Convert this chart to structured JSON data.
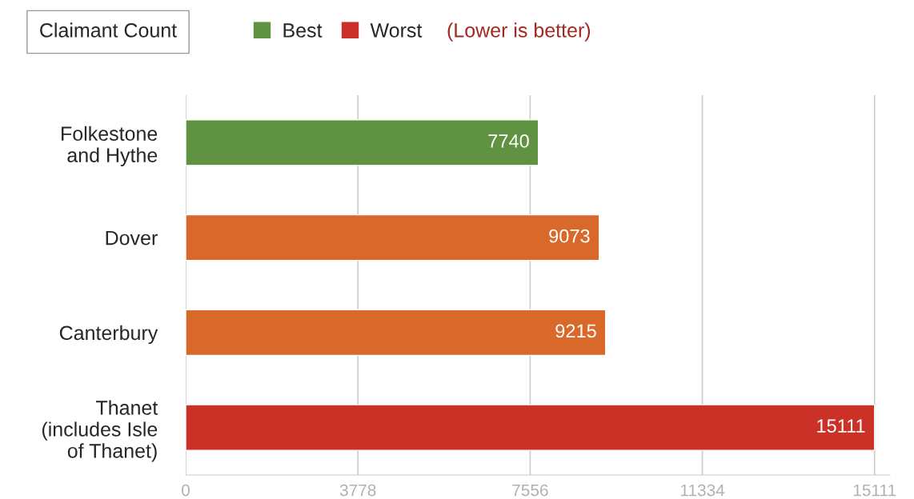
{
  "chart_data": {
    "type": "bar",
    "title": "Claimant Count",
    "orientation": "horizontal",
    "stacked": true,
    "categories": [
      "Folkestone\nand Hythe",
      "Dover",
      "Canterbury",
      "Thanet\n(includes Isle\nof Thanet)"
    ],
    "series": [
      {
        "name": "Best",
        "color": "#5f9341",
        "values": [
          7740,
          null,
          null,
          null
        ]
      },
      {
        "color": "#d9692a",
        "values": [
          null,
          9073,
          9215,
          null
        ]
      },
      {
        "name": "Worst",
        "color": "#cc3128",
        "values": [
          null,
          null,
          null,
          15111
        ]
      }
    ],
    "xlim": [
      0,
      15450
    ],
    "xticks": [
      0,
      3778,
      7556,
      11334,
      15111
    ],
    "grid": "x",
    "legend": "top",
    "data_labels": true,
    "annotations": [
      "(Lower is better)"
    ]
  }
}
